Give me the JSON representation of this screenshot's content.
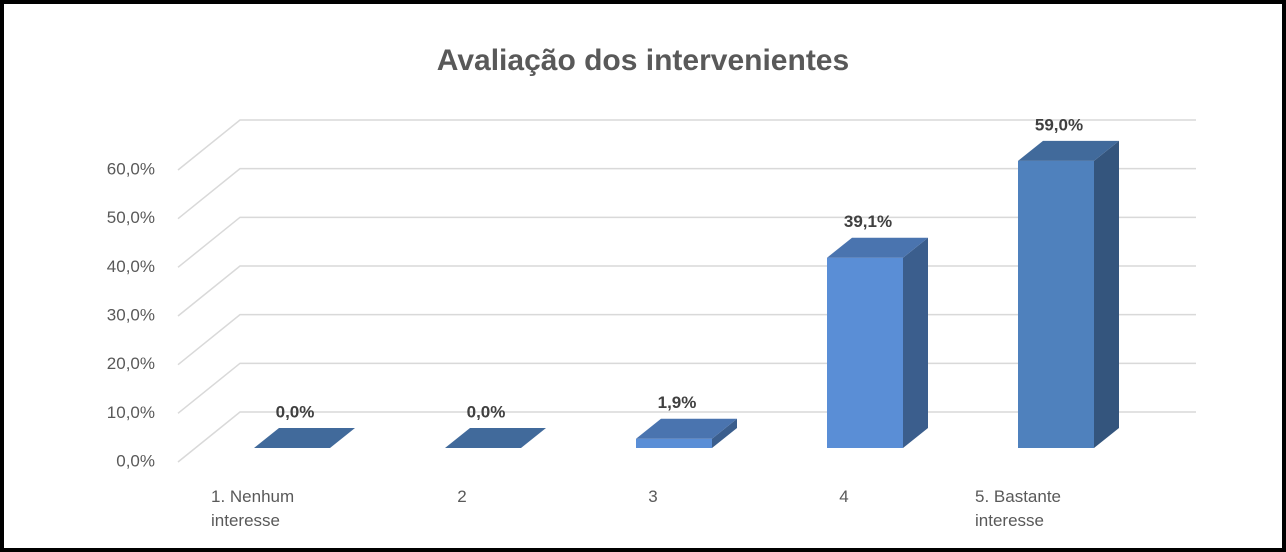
{
  "chart_data": {
    "type": "bar3d",
    "title": "Avaliação dos intervenientes",
    "categories": [
      "1. Nenhum interesse",
      "2",
      "3",
      "4",
      "5. Bastante interesse"
    ],
    "values": [
      0,
      0,
      1.9,
      39.1,
      59.0
    ],
    "value_labels": [
      "0,0%",
      "0,0%",
      "1,9%",
      "39,1%",
      "59,0%"
    ],
    "colors": [
      "#4f81bd",
      "#4f81bd",
      "#5a8ed6",
      "#5a8ed6",
      "#4f81bd"
    ],
    "ylim": [
      0,
      60
    ],
    "yticks": [
      {
        "value": 0,
        "label": "0,0%"
      },
      {
        "value": 10,
        "label": "10,0%"
      },
      {
        "value": 20,
        "label": "20,0%"
      },
      {
        "value": 30,
        "label": "30,0%"
      },
      {
        "value": 40,
        "label": "40,0%"
      },
      {
        "value": 50,
        "label": "50,0%"
      },
      {
        "value": 60,
        "label": "60,0%"
      }
    ],
    "grid": true
  }
}
